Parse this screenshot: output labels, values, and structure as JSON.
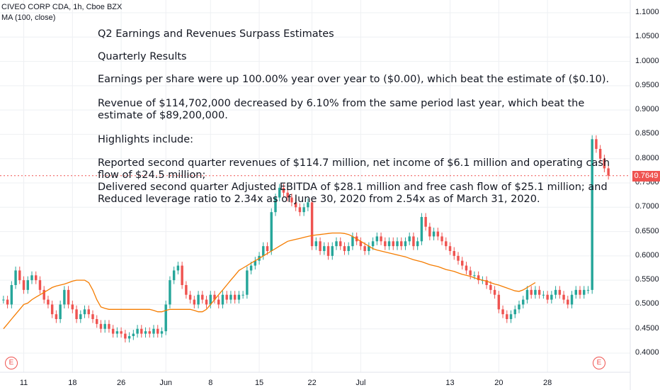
{
  "header": {
    "symbol_line": "CIVEO CORP CDA, 1h, Cboe BZX",
    "indicator_line": "MA (100, close)"
  },
  "notes": [
    "Q2 Earnings and Revenues Surpass Estimates",
    "Quarterly Results",
    "Earnings per share were up 100.00% year over year to ($0.00), which beat the estimate of ($0.10).",
    "Revenue of $114,702,000 decreased by 6.10% from the same period last year, which beat the",
    "estimate of $89,200,000.",
    "Highlights include:",
    "Reported second quarter revenues of $114.7 million, net income of $6.1 million and operating cash",
    "flow of $24.5 million;",
    "Delivered second quarter Adjusted EBITDA of $28.1 million and free cash flow of $25.1 million; and",
    "Reduced leverage ratio to 2.34x as of June 30, 2020 from 2.54x as of March 31, 2020."
  ],
  "last_price": "0.7649",
  "event_marker": "E",
  "colors": {
    "up": "#26a69a",
    "down": "#ef5350",
    "ma": "#f57c00",
    "grid": "#eef0f3",
    "axis_text": "#131722"
  },
  "chart_data": {
    "type": "candlestick",
    "title": "CIVEO CORP CDA, 1h, Cboe BZX",
    "y_ticks": [
      "0.4000",
      "0.4500",
      "0.5000",
      "0.5500",
      "0.6000",
      "0.6500",
      "0.7000",
      "0.7500",
      "0.8000",
      "0.8500",
      "0.9000",
      "0.9500",
      "1.0000",
      "1.0500",
      "1.1000"
    ],
    "ylim": [
      0.37,
      1.11
    ],
    "x_ticks": [
      "11",
      "18",
      "26",
      "Jun",
      "8",
      "15",
      "22",
      "Jul",
      "13",
      "20",
      "28"
    ],
    "x_tick_index": [
      5,
      17,
      29,
      40,
      51,
      63,
      76,
      88,
      110,
      122,
      134
    ],
    "x_range": [
      0,
      150
    ],
    "ma_line": {
      "name": "MA (100, close)",
      "values": [
        0.45,
        0.46,
        0.47,
        0.48,
        0.49,
        0.5,
        0.503,
        0.51,
        0.515,
        0.52,
        0.525,
        0.53,
        0.535,
        0.538,
        0.54,
        0.542,
        0.545,
        0.548,
        0.55,
        0.55,
        0.55,
        0.545,
        0.53,
        0.51,
        0.495,
        0.492,
        0.49,
        0.49,
        0.49,
        0.49,
        0.49,
        0.49,
        0.49,
        0.49,
        0.49,
        0.49,
        0.49,
        0.488,
        0.485,
        0.485,
        0.488,
        0.49,
        0.49,
        0.49,
        0.49,
        0.49,
        0.49,
        0.488,
        0.485,
        0.485,
        0.49,
        0.5,
        0.51,
        0.52,
        0.53,
        0.54,
        0.55,
        0.56,
        0.57,
        0.575,
        0.58,
        0.585,
        0.59,
        0.595,
        0.6,
        0.605,
        0.61,
        0.615,
        0.62,
        0.625,
        0.63,
        0.632,
        0.634,
        0.636,
        0.638,
        0.64,
        0.642,
        0.643,
        0.644,
        0.645,
        0.646,
        0.647,
        0.647,
        0.647,
        0.646,
        0.644,
        0.64,
        0.635,
        0.63,
        0.625,
        0.62,
        0.615,
        0.612,
        0.61,
        0.608,
        0.606,
        0.604,
        0.602,
        0.6,
        0.598,
        0.595,
        0.592,
        0.59,
        0.588,
        0.585,
        0.582,
        0.58,
        0.578,
        0.575,
        0.572,
        0.57,
        0.568,
        0.565,
        0.562,
        0.56,
        0.558,
        0.555,
        0.552,
        0.55,
        0.548,
        0.545,
        0.542,
        0.54,
        0.537,
        0.534,
        0.531,
        0.528,
        0.527,
        0.53,
        0.535,
        0.54,
        0.545
      ]
    },
    "closes": [
      0.51,
      0.5,
      0.54,
      0.57,
      0.55,
      0.53,
      0.55,
      0.56,
      0.55,
      0.53,
      0.51,
      0.5,
      0.48,
      0.47,
      0.5,
      0.53,
      0.5,
      0.49,
      0.47,
      0.48,
      0.49,
      0.48,
      0.47,
      0.46,
      0.45,
      0.46,
      0.45,
      0.44,
      0.445,
      0.44,
      0.43,
      0.435,
      0.44,
      0.45,
      0.44,
      0.445,
      0.44,
      0.45,
      0.44,
      0.445,
      0.5,
      0.55,
      0.57,
      0.58,
      0.54,
      0.52,
      0.51,
      0.5,
      0.52,
      0.51,
      0.5,
      0.52,
      0.51,
      0.5,
      0.52,
      0.51,
      0.52,
      0.51,
      0.52,
      0.52,
      0.57,
      0.58,
      0.59,
      0.6,
      0.62,
      0.61,
      0.69,
      0.72,
      0.74,
      0.73,
      0.72,
      0.71,
      0.7,
      0.69,
      0.7,
      0.71,
      0.62,
      0.63,
      0.61,
      0.62,
      0.6,
      0.62,
      0.63,
      0.62,
      0.61,
      0.62,
      0.64,
      0.63,
      0.62,
      0.61,
      0.62,
      0.63,
      0.64,
      0.63,
      0.62,
      0.63,
      0.62,
      0.63,
      0.62,
      0.63,
      0.64,
      0.62,
      0.63,
      0.68,
      0.66,
      0.64,
      0.65,
      0.64,
      0.63,
      0.62,
      0.61,
      0.6,
      0.59,
      0.58,
      0.57,
      0.56,
      0.56,
      0.55,
      0.55,
      0.54,
      0.53,
      0.52,
      0.49,
      0.48,
      0.47,
      0.48,
      0.49,
      0.5,
      0.51,
      0.53,
      0.52,
      0.53,
      0.52,
      0.52,
      0.51,
      0.52,
      0.53,
      0.52,
      0.51,
      0.5,
      0.52,
      0.53,
      0.52,
      0.53,
      0.53,
      0.84,
      0.82,
      0.8,
      0.78,
      0.765
    ]
  }
}
